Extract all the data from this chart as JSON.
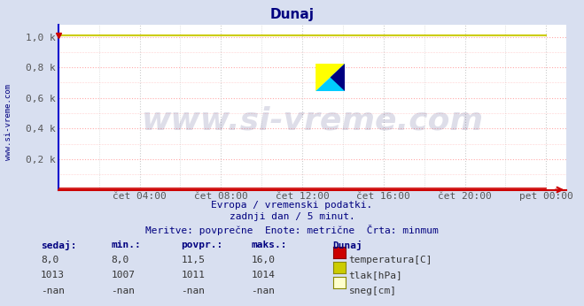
{
  "title": "Dunaj",
  "title_color": "#000080",
  "bg_color": "#d8dff0",
  "plot_bg_color": "#ffffff",
  "grid_color": "#ffaaaa",
  "grid_color2": "#cccccc",
  "axis_left_color": "#0000cc",
  "axis_bottom_color": "#cc0000",
  "watermark_text": "www.si-vreme.com",
  "watermark_color": "#000055",
  "watermark_alpha": 0.13,
  "watermark_fontsize": 26,
  "subtitle1": "Evropa / vremenski podatki.",
  "subtitle2": "zadnji dan / 5 minut.",
  "subtitle3": "Meritve: povprečne  Enote: metrične  Črta: minmum",
  "subtitle_color": "#000080",
  "subtitle_fontsize": 8,
  "ylabel_text": "www.si-vreme.com",
  "ylabel_color": "#000080",
  "xtick_labels": [
    "čet 04:00",
    "čet 08:00",
    "čet 12:00",
    "čet 16:00",
    "čet 20:00",
    "pet 00:00"
  ],
  "xtick_positions": [
    48,
    96,
    144,
    192,
    240,
    288
  ],
  "ytick_labels": [
    "0,2 k",
    "0,4 k",
    "0,6 k",
    "0,8 k",
    "1,0 k"
  ],
  "ytick_values": [
    200,
    400,
    600,
    800,
    1000
  ],
  "ymin": 0,
  "ymax": 1080,
  "xmin": 0,
  "xmax": 300,
  "temp_color": "#cc0000",
  "pressure_color": "#cccc00",
  "snow_color": "#ffffcc",
  "legend_header": "Dunaj",
  "legend_header_color": "#000080",
  "legend_items": [
    {
      "label": "temperatura[C]",
      "color": "#cc0000",
      "border": "#880000",
      "sedaj": "8,0",
      "min": "8,0",
      "povpr": "11,5",
      "maks": "16,0"
    },
    {
      "label": "tlak[hPa]",
      "color": "#cccc00",
      "border": "#888800",
      "sedaj": "1013",
      "min": "1007",
      "povpr": "1011",
      "maks": "1014"
    },
    {
      "label": "sneg[cm]",
      "color": "#ffffcc",
      "border": "#888800",
      "sedaj": "-nan",
      "min": "-nan",
      "povpr": "-nan",
      "maks": "-nan"
    }
  ],
  "table_headers": [
    "sedaj:",
    "min.:",
    "povpr.:",
    "maks.:"
  ],
  "table_color": "#000080",
  "data_color": "#333333"
}
